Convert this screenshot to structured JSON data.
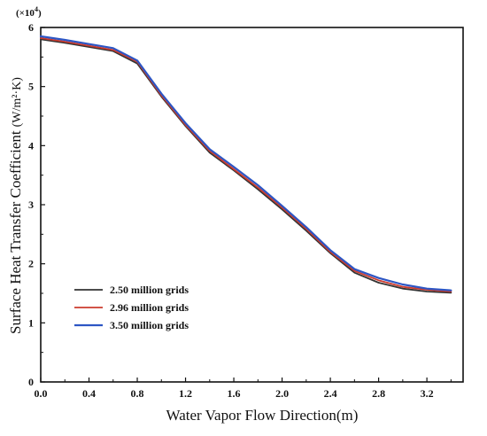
{
  "chart_data": {
    "type": "line",
    "xlabel": "Water Vapor Flow Direction(m)",
    "ylabel": "Surface Heat Transfer Coefficient",
    "ylabel_unit": "(W/m²·K)",
    "y_multiplier_base": "(×10",
    "y_multiplier_exp": "4",
    "y_multiplier_close": ")",
    "xlim": [
      0.0,
      3.5
    ],
    "ylim": [
      0,
      6
    ],
    "xticks": [
      "0.0",
      "0.4",
      "0.8",
      "1.2",
      "1.6",
      "2.0",
      "2.4",
      "2.8",
      "3.2"
    ],
    "xtick_values": [
      0.0,
      0.4,
      0.8,
      1.2,
      1.6,
      2.0,
      2.4,
      2.8,
      3.2
    ],
    "yticks": [
      "0",
      "1",
      "2",
      "3",
      "4",
      "5",
      "6"
    ],
    "ytick_values": [
      0,
      1,
      2,
      3,
      4,
      5,
      6
    ],
    "grid": false,
    "legend_position": "bottom-left",
    "x": [
      0.0,
      0.2,
      0.4,
      0.6,
      0.8,
      1.0,
      1.2,
      1.4,
      1.6,
      1.8,
      2.0,
      2.2,
      2.4,
      2.6,
      2.8,
      3.0,
      3.2,
      3.4
    ],
    "series": [
      {
        "name": "2.50 million grids",
        "color": "#333333",
        "values": [
          5.8,
          5.74,
          5.67,
          5.6,
          5.39,
          4.83,
          4.33,
          3.88,
          3.58,
          3.26,
          2.92,
          2.56,
          2.18,
          1.85,
          1.68,
          1.58,
          1.53,
          1.51
        ]
      },
      {
        "name": "2.96 million grids",
        "color": "#cc3b2e",
        "values": [
          5.82,
          5.76,
          5.69,
          5.62,
          5.42,
          4.85,
          4.35,
          3.91,
          3.6,
          3.29,
          2.95,
          2.59,
          2.2,
          1.88,
          1.72,
          1.61,
          1.56,
          1.53
        ]
      },
      {
        "name": "3.50 million grids",
        "color": "#2d56c4",
        "values": [
          5.85,
          5.79,
          5.72,
          5.65,
          5.44,
          4.88,
          4.38,
          3.94,
          3.64,
          3.33,
          2.98,
          2.62,
          2.23,
          1.91,
          1.76,
          1.65,
          1.58,
          1.55
        ]
      }
    ]
  }
}
